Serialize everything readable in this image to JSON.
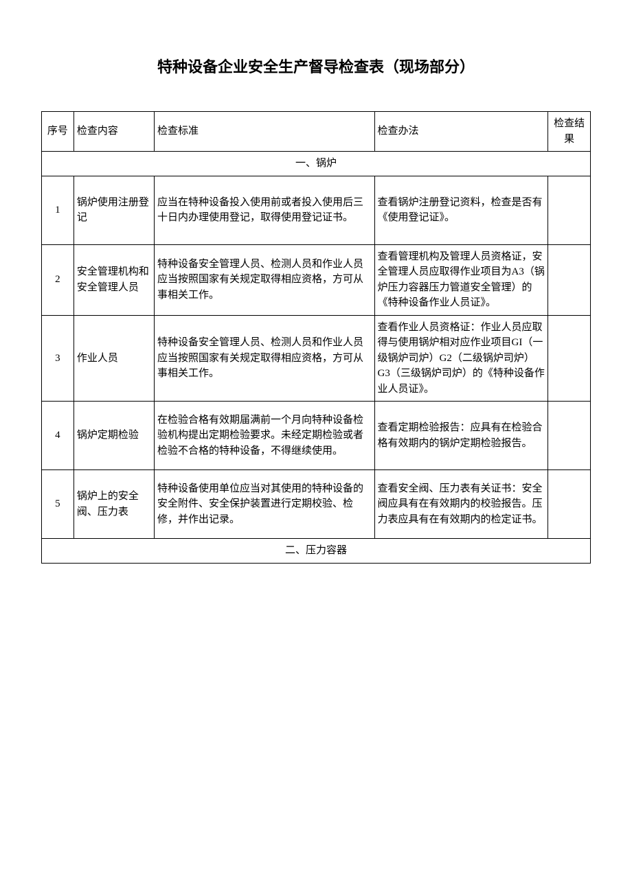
{
  "title": "特种设备企业安全生产督导检查表（现场部分）",
  "headers": {
    "num": "序号",
    "content": "检查内容",
    "standard": "检查标准",
    "method": "检查办法",
    "result": "检查结果"
  },
  "sections": [
    {
      "title": "一、锅炉",
      "rows": [
        {
          "num": "1",
          "content": "锅炉使用注册登记",
          "standard": "应当在特种设备投入使用前或者投入使用后三十日内办理使用登记，取得使用登记证书。",
          "method": "查看锅炉注册登记资料，检查是否有《使用登记证》。",
          "result": ""
        },
        {
          "num": "2",
          "content": "安全管理机构和安全管理人员",
          "standard": "特种设备安全管理人员、检测人员和作业人员应当按照国家有关规定取得相应资格，方可从事相关工作。",
          "method": "查看管理机构及管理人员资格证，安全管理人员应取得作业项目为A3（锅炉压力容器压力管道安全管理）的《特种设备作业人员证》。",
          "result": ""
        },
        {
          "num": "3",
          "content": "作业人员",
          "standard": "特种设备安全管理人员、检测人员和作业人员应当按照国家有关规定取得相应资格，方可从事相关工作。",
          "method": "查看作业人员资格证：作业人员应取得与使用锅炉相对应作业项目GI（一级锅炉司炉）G2（二级锅炉司炉）G3（三级锅炉司炉）的《特种设备作业人员证》。",
          "result": ""
        },
        {
          "num": "4",
          "content": "锅炉定期检验",
          "standard": "在检验合格有效期届满前一个月向特种设备检验机构提出定期检验要求。未经定期检验或者检验不合格的特种设备，不得继续使用。",
          "method": "查看定期检验报告：应具有在检验合格有效期内的锅炉定期检验报告。",
          "result": ""
        },
        {
          "num": "5",
          "content": "锅炉上的安全阀、压力表",
          "standard": "特种设备使用单位应当对其使用的特种设备的安全附件、安全保护装置进行定期校验、检修，并作出记录。",
          "method": "查看安全阀、压力表有关证书：安全阀应具有在有效期内的校验报告。压力表应具有在有效期内的检定证书。",
          "result": ""
        }
      ]
    },
    {
      "title": "二、压力容器",
      "rows": []
    }
  ],
  "colors": {
    "text": "#000000",
    "border": "#000000",
    "background": "#ffffff"
  },
  "fonts": {
    "title_size": 22,
    "body_size": 15
  }
}
